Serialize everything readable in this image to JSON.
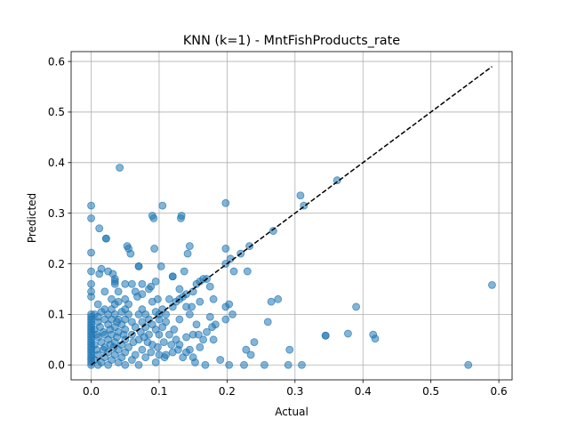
{
  "chart_data": {
    "type": "scatter",
    "title": "KNN (k=1) - MntFishProducts_rate",
    "xlabel": "Actual",
    "ylabel": "Predicted",
    "xlim": [
      -0.0295,
      0.6195
    ],
    "ylim": [
      -0.0295,
      0.6195
    ],
    "xticks": [
      "0.0",
      "0.1",
      "0.2",
      "0.3",
      "0.4",
      "0.5",
      "0.6"
    ],
    "yticks": [
      "0.0",
      "0.1",
      "0.2",
      "0.3",
      "0.4",
      "0.5",
      "0.6"
    ],
    "grid": true,
    "legend": "none",
    "marker_color": "#1f77b4",
    "marker_alpha": 0.55,
    "reference_line": {
      "style": "dashed",
      "color": "#000000",
      "from": [
        0,
        0
      ],
      "to": [
        0.59,
        0.59
      ]
    },
    "points": [
      [
        0.0,
        0.315
      ],
      [
        0.0,
        0.29
      ],
      [
        0.0,
        0.222
      ],
      [
        0.0,
        0.185
      ],
      [
        0.0,
        0.16
      ],
      [
        0.0,
        0.145
      ],
      [
        0.0,
        0.135
      ],
      [
        0.0,
        0.1
      ],
      [
        0.0,
        0.095
      ],
      [
        0.0,
        0.09
      ],
      [
        0.0,
        0.085
      ],
      [
        0.0,
        0.08
      ],
      [
        0.0,
        0.075
      ],
      [
        0.0,
        0.07
      ],
      [
        0.0,
        0.065
      ],
      [
        0.0,
        0.06
      ],
      [
        0.0,
        0.055
      ],
      [
        0.0,
        0.05
      ],
      [
        0.0,
        0.045
      ],
      [
        0.0,
        0.04
      ],
      [
        0.0,
        0.035
      ],
      [
        0.0,
        0.03
      ],
      [
        0.0,
        0.025
      ],
      [
        0.0,
        0.02
      ],
      [
        0.0,
        0.015
      ],
      [
        0.0,
        0.01
      ],
      [
        0.0,
        0.005
      ],
      [
        0.0,
        0.0
      ],
      [
        0.005,
        0.1
      ],
      [
        0.005,
        0.07
      ],
      [
        0.005,
        0.04
      ],
      [
        0.005,
        0.01
      ],
      [
        0.008,
        0.06
      ],
      [
        0.008,
        0.03
      ],
      [
        0.01,
        0.12
      ],
      [
        0.01,
        0.095
      ],
      [
        0.01,
        0.085
      ],
      [
        0.01,
        0.055
      ],
      [
        0.01,
        0.02
      ],
      [
        0.01,
        0.0
      ],
      [
        0.012,
        0.27
      ],
      [
        0.012,
        0.18
      ],
      [
        0.013,
        0.075
      ],
      [
        0.015,
        0.19
      ],
      [
        0.015,
        0.105
      ],
      [
        0.015,
        0.045
      ],
      [
        0.015,
        0.005
      ],
      [
        0.018,
        0.065
      ],
      [
        0.018,
        0.03
      ],
      [
        0.02,
        0.145
      ],
      [
        0.02,
        0.11
      ],
      [
        0.02,
        0.09
      ],
      [
        0.02,
        0.06
      ],
      [
        0.02,
        0.035
      ],
      [
        0.02,
        0.015
      ],
      [
        0.022,
        0.25
      ],
      [
        0.022,
        0.25
      ],
      [
        0.025,
        0.185
      ],
      [
        0.025,
        0.1
      ],
      [
        0.025,
        0.08
      ],
      [
        0.025,
        0.05
      ],
      [
        0.025,
        0.025
      ],
      [
        0.025,
        0.0
      ],
      [
        0.028,
        0.07
      ],
      [
        0.028,
        0.04
      ],
      [
        0.03,
        0.13
      ],
      [
        0.03,
        0.11
      ],
      [
        0.03,
        0.09
      ],
      [
        0.03,
        0.06
      ],
      [
        0.03,
        0.01
      ],
      [
        0.032,
        0.18
      ],
      [
        0.033,
        0.035
      ],
      [
        0.035,
        0.17
      ],
      [
        0.035,
        0.165
      ],
      [
        0.035,
        0.16
      ],
      [
        0.035,
        0.12
      ],
      [
        0.035,
        0.1
      ],
      [
        0.035,
        0.075
      ],
      [
        0.035,
        0.045
      ],
      [
        0.035,
        0.02
      ],
      [
        0.038,
        0.085
      ],
      [
        0.038,
        0.055
      ],
      [
        0.04,
        0.145
      ],
      [
        0.04,
        0.125
      ],
      [
        0.04,
        0.09
      ],
      [
        0.04,
        0.065
      ],
      [
        0.04,
        0.03
      ],
      [
        0.04,
        0.005
      ],
      [
        0.042,
        0.39
      ],
      [
        0.045,
        0.105
      ],
      [
        0.045,
        0.08
      ],
      [
        0.045,
        0.04
      ],
      [
        0.045,
        0.015
      ],
      [
        0.048,
        0.06
      ],
      [
        0.05,
        0.16
      ],
      [
        0.05,
        0.13
      ],
      [
        0.05,
        0.11
      ],
      [
        0.05,
        0.09
      ],
      [
        0.05,
        0.07
      ],
      [
        0.05,
        0.05
      ],
      [
        0.05,
        0.025
      ],
      [
        0.05,
        0.0
      ],
      [
        0.053,
        0.235
      ],
      [
        0.055,
        0.23
      ],
      [
        0.055,
        0.12
      ],
      [
        0.055,
        0.1
      ],
      [
        0.055,
        0.035
      ],
      [
        0.058,
        0.22
      ],
      [
        0.06,
        0.16
      ],
      [
        0.06,
        0.085
      ],
      [
        0.06,
        0.06
      ],
      [
        0.06,
        0.01
      ],
      [
        0.062,
        0.045
      ],
      [
        0.065,
        0.145
      ],
      [
        0.065,
        0.075
      ],
      [
        0.065,
        0.02
      ],
      [
        0.068,
        0.135
      ],
      [
        0.07,
        0.195
      ],
      [
        0.07,
        0.195
      ],
      [
        0.07,
        0.1
      ],
      [
        0.07,
        0.05
      ],
      [
        0.07,
        0.0
      ],
      [
        0.073,
        0.065
      ],
      [
        0.075,
        0.16
      ],
      [
        0.075,
        0.14
      ],
      [
        0.075,
        0.11
      ],
      [
        0.075,
        0.085
      ],
      [
        0.075,
        0.03
      ],
      [
        0.078,
        0.055
      ],
      [
        0.08,
        0.1
      ],
      [
        0.08,
        0.075
      ],
      [
        0.08,
        0.015
      ],
      [
        0.083,
        0.045
      ],
      [
        0.085,
        0.15
      ],
      [
        0.085,
        0.09
      ],
      [
        0.085,
        0.06
      ],
      [
        0.088,
        0.155
      ],
      [
        0.088,
        0.025
      ],
      [
        0.09,
        0.295
      ],
      [
        0.09,
        0.125
      ],
      [
        0.09,
        0.08
      ],
      [
        0.09,
        0.04
      ],
      [
        0.092,
        0.29
      ],
      [
        0.093,
        0.23
      ],
      [
        0.095,
        0.165
      ],
      [
        0.095,
        0.105
      ],
      [
        0.095,
        0.07
      ],
      [
        0.095,
        0.005
      ],
      [
        0.098,
        0.13
      ],
      [
        0.098,
        0.035
      ],
      [
        0.1,
        0.1
      ],
      [
        0.1,
        0.09
      ],
      [
        0.1,
        0.06
      ],
      [
        0.1,
        0.02
      ],
      [
        0.103,
        0.195
      ],
      [
        0.105,
        0.315
      ],
      [
        0.105,
        0.11
      ],
      [
        0.105,
        0.075
      ],
      [
        0.107,
        0.045
      ],
      [
        0.108,
        0.015
      ],
      [
        0.11,
        0.1
      ],
      [
        0.11,
        0.085
      ],
      [
        0.11,
        0.02
      ],
      [
        0.115,
        0.13
      ],
      [
        0.115,
        0.06
      ],
      [
        0.118,
        0.04
      ],
      [
        0.12,
        0.175
      ],
      [
        0.12,
        0.175
      ],
      [
        0.12,
        0.115
      ],
      [
        0.12,
        0.025
      ],
      [
        0.122,
        0.07
      ],
      [
        0.125,
        0.125
      ],
      [
        0.125,
        0.05
      ],
      [
        0.128,
        0.03
      ],
      [
        0.13,
        0.15
      ],
      [
        0.13,
        0.13
      ],
      [
        0.13,
        0.09
      ],
      [
        0.13,
        0.04
      ],
      [
        0.132,
        0.29
      ],
      [
        0.133,
        0.295
      ],
      [
        0.135,
        0.135
      ],
      [
        0.135,
        0.015
      ],
      [
        0.137,
        0.185
      ],
      [
        0.14,
        0.14
      ],
      [
        0.14,
        0.115
      ],
      [
        0.14,
        0.055
      ],
      [
        0.14,
        0.025
      ],
      [
        0.142,
        0.22
      ],
      [
        0.145,
        0.235
      ],
      [
        0.145,
        0.1
      ],
      [
        0.145,
        0.03
      ],
      [
        0.148,
        0.115
      ],
      [
        0.15,
        0.145
      ],
      [
        0.15,
        0.06
      ],
      [
        0.15,
        0.015
      ],
      [
        0.153,
        0.005
      ],
      [
        0.155,
        0.16
      ],
      [
        0.155,
        0.08
      ],
      [
        0.158,
        0.06
      ],
      [
        0.16,
        0.165
      ],
      [
        0.16,
        0.125
      ],
      [
        0.16,
        0.035
      ],
      [
        0.165,
        0.17
      ],
      [
        0.165,
        0.05
      ],
      [
        0.168,
        0.0
      ],
      [
        0.17,
        0.17
      ],
      [
        0.17,
        0.065
      ],
      [
        0.175,
        0.155
      ],
      [
        0.175,
        0.095
      ],
      [
        0.178,
        0.075
      ],
      [
        0.18,
        0.13
      ],
      [
        0.18,
        0.05
      ],
      [
        0.183,
        0.08
      ],
      [
        0.19,
        0.01
      ],
      [
        0.198,
        0.32
      ],
      [
        0.198,
        0.23
      ],
      [
        0.198,
        0.2
      ],
      [
        0.198,
        0.115
      ],
      [
        0.198,
        0.09
      ],
      [
        0.203,
        0.12
      ],
      [
        0.203,
        0.0
      ],
      [
        0.205,
        0.21
      ],
      [
        0.208,
        0.1
      ],
      [
        0.21,
        0.185
      ],
      [
        0.22,
        0.22
      ],
      [
        0.225,
        0.0
      ],
      [
        0.228,
        0.03
      ],
      [
        0.23,
        0.185
      ],
      [
        0.233,
        0.235
      ],
      [
        0.235,
        0.02
      ],
      [
        0.24,
        0.045
      ],
      [
        0.255,
        0.0
      ],
      [
        0.26,
        0.085
      ],
      [
        0.265,
        0.125
      ],
      [
        0.268,
        0.265
      ],
      [
        0.275,
        0.13
      ],
      [
        0.29,
        0.0
      ],
      [
        0.292,
        0.03
      ],
      [
        0.308,
        0.335
      ],
      [
        0.31,
        0.0
      ],
      [
        0.313,
        0.315
      ],
      [
        0.345,
        0.058
      ],
      [
        0.345,
        0.058
      ],
      [
        0.362,
        0.365
      ],
      [
        0.378,
        0.062
      ],
      [
        0.39,
        0.115
      ],
      [
        0.415,
        0.06
      ],
      [
        0.418,
        0.052
      ],
      [
        0.555,
        0.0
      ],
      [
        0.59,
        0.158
      ]
    ]
  }
}
